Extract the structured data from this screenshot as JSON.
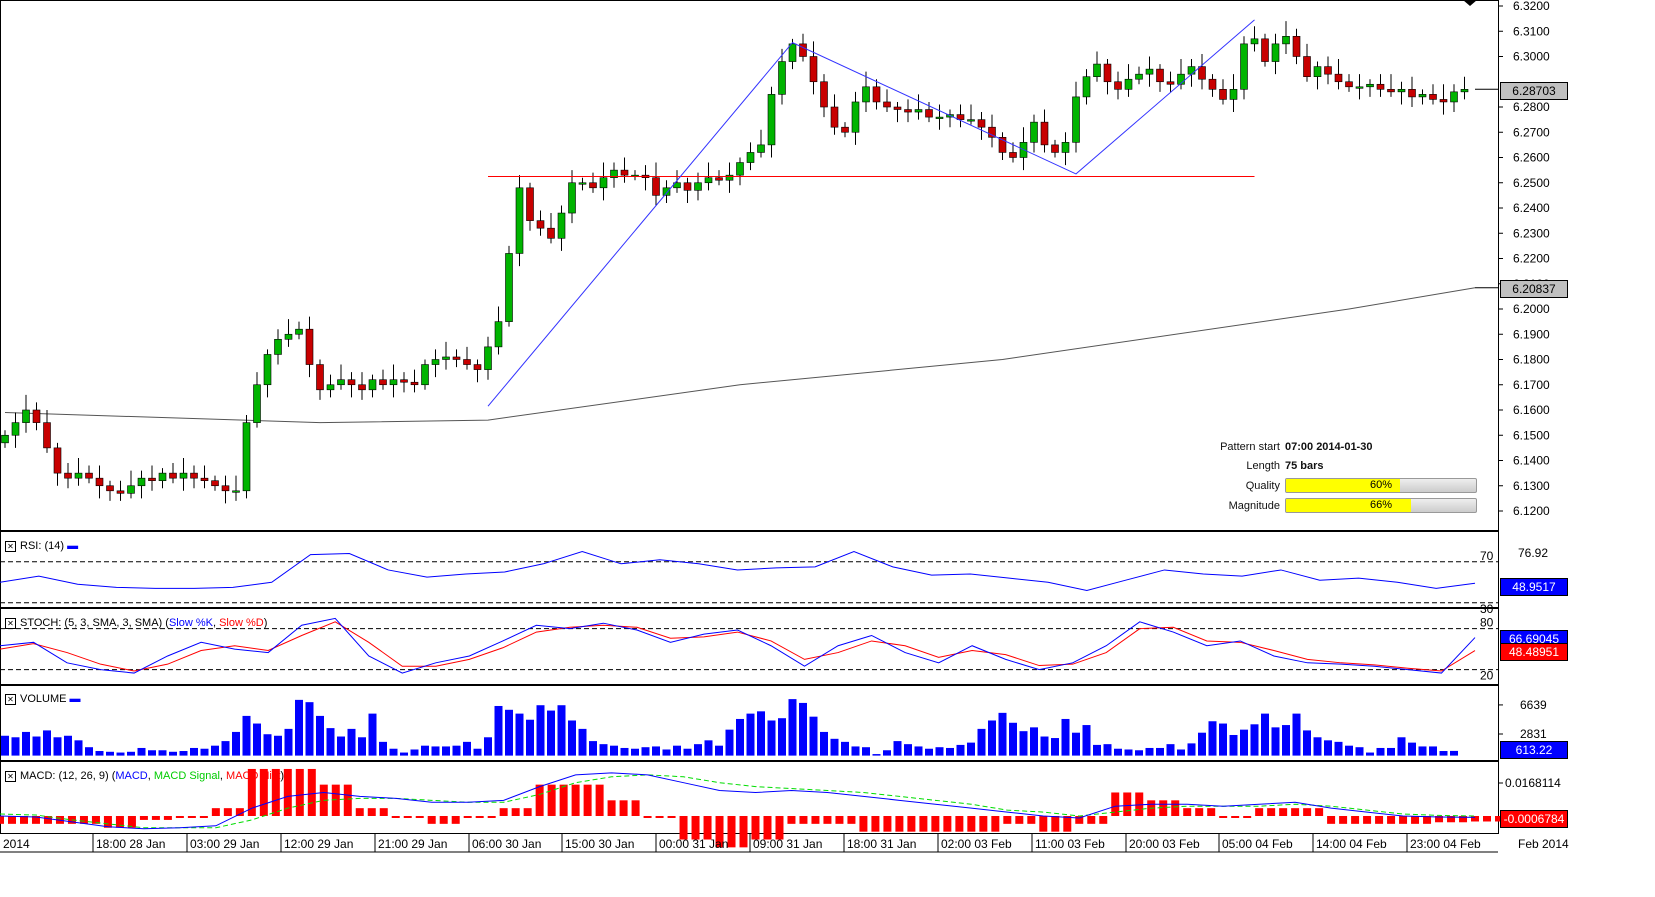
{
  "chart_data": [
    {
      "type": "candlestick",
      "title": "Price",
      "y_ticks": [
        "6.3200",
        "6.3100",
        "6.3000",
        "6.2800",
        "6.2700",
        "6.2600",
        "6.2500",
        "6.2400",
        "6.2300",
        "6.2200",
        "6.2100",
        "6.2000",
        "6.1900",
        "6.1800",
        "6.1700",
        "6.1600",
        "6.1500",
        "6.1400",
        "6.1300",
        "6.1200"
      ],
      "ylim": [
        6.1195,
        6.3198
      ],
      "closes": [
        6.15,
        6.155,
        6.16,
        6.155,
        6.145,
        6.135,
        6.133,
        6.135,
        6.133,
        6.13,
        6.128,
        6.127,
        6.13,
        6.133,
        6.132,
        6.135,
        6.133,
        6.135,
        6.133,
        6.132,
        6.13,
        6.128,
        6.128,
        6.155,
        6.17,
        6.182,
        6.188,
        6.19,
        6.192,
        6.178,
        6.168,
        6.17,
        6.172,
        6.17,
        6.168,
        6.172,
        6.17,
        6.172,
        6.171,
        6.17,
        6.178,
        6.18,
        6.181,
        6.18,
        6.178,
        6.176,
        6.185,
        6.195,
        6.222,
        6.248,
        6.235,
        6.232,
        6.228,
        6.238,
        6.25,
        6.25,
        6.248,
        6.252,
        6.255,
        6.253,
        6.253,
        6.252,
        6.245,
        6.248,
        6.25,
        6.247,
        6.25,
        6.252,
        6.251,
        6.253,
        6.258,
        6.262,
        6.265,
        6.285,
        6.298,
        6.305,
        6.3,
        6.29,
        6.28,
        6.272,
        6.27,
        6.282,
        6.288,
        6.282,
        6.28,
        6.279,
        6.278,
        6.279,
        6.276,
        6.276,
        6.277,
        6.275,
        6.275,
        6.272,
        6.268,
        6.262,
        6.26,
        6.266,
        6.274,
        6.265,
        6.262,
        6.266,
        6.284,
        6.292,
        6.297,
        6.29,
        6.287,
        6.291,
        6.293,
        6.295,
        6.29,
        6.289,
        6.293,
        6.296,
        6.291,
        6.287,
        6.283,
        6.287,
        6.305,
        6.307,
        6.298,
        6.305,
        6.308,
        6.3,
        6.292,
        6.296,
        6.293,
        6.29,
        6.288,
        6.288,
        6.289,
        6.287,
        6.286,
        6.287,
        6.284,
        6.285,
        6.283,
        6.282,
        6.286,
        6.287
      ],
      "sma": [
        [
          0,
          6.159
        ],
        [
          30,
          6.155
        ],
        [
          46,
          6.156
        ],
        [
          70,
          6.17
        ],
        [
          95,
          6.18
        ],
        [
          128,
          6.2
        ],
        [
          140,
          6.2084
        ]
      ],
      "current_price": "6.28703",
      "sma_value": "6.20837",
      "pattern_zigzag": [
        [
          46,
          6.1615
        ],
        [
          75,
          6.3055
        ],
        [
          102,
          6.2535
        ],
        [
          119,
          6.3145
        ]
      ],
      "pattern_level": {
        "from": 46,
        "to": 119,
        "price": 6.2525
      },
      "colors": {
        "up": "#00b400",
        "down": "#c80000",
        "pattern": "#3333ff",
        "level": "#ff0000",
        "sma": "#555555"
      }
    },
    {
      "type": "line",
      "title": "RSI: (14)",
      "levels": [
        "70",
        "30"
      ],
      "level_values": [
        70,
        30
      ],
      "scale_label": "76.92",
      "current": "48.9517",
      "values": [
        50,
        56,
        48,
        45,
        44,
        44,
        45,
        50,
        77,
        78,
        62,
        55,
        58,
        60,
        68,
        80,
        68,
        72,
        68,
        62,
        64,
        65,
        80,
        65,
        57,
        58,
        54,
        50,
        42,
        52,
        62,
        58,
        56,
        62,
        52,
        54,
        50,
        44,
        49
      ]
    },
    {
      "type": "line",
      "title": "STOCH: (5, 3, SMA, 3, SMA)",
      "legend": [
        "Slow %K",
        "Slow %D"
      ],
      "levels": [
        "80",
        "20"
      ],
      "level_values": [
        80,
        20
      ],
      "current_k": "66.69045",
      "current_d": "48.48951",
      "k": [
        55,
        60,
        30,
        20,
        15,
        40,
        60,
        50,
        45,
        85,
        95,
        40,
        15,
        30,
        40,
        62,
        85,
        80,
        88,
        78,
        60,
        72,
        78,
        55,
        25,
        55,
        70,
        45,
        30,
        55,
        35,
        20,
        30,
        55,
        90,
        75,
        55,
        62,
        40,
        30,
        28,
        25,
        20,
        15,
        67
      ],
      "d": [
        50,
        58,
        45,
        28,
        18,
        28,
        48,
        55,
        48,
        70,
        90,
        60,
        25,
        25,
        35,
        52,
        75,
        82,
        85,
        82,
        66,
        68,
        75,
        62,
        35,
        45,
        62,
        55,
        38,
        48,
        42,
        26,
        28,
        45,
        80,
        82,
        62,
        60,
        48,
        35,
        30,
        27,
        22,
        18,
        48
      ]
    },
    {
      "type": "bar",
      "title": "VOLUME",
      "scale_labels": [
        "6639",
        "2831"
      ],
      "current": "613.22",
      "values": [
        2600,
        2400,
        3100,
        2500,
        3300,
        2400,
        2600,
        2000,
        1100,
        600,
        500,
        400,
        500,
        1000,
        700,
        700,
        500,
        600,
        1000,
        900,
        1300,
        1900,
        3100,
        5200,
        4200,
        2800,
        2600,
        3500,
        7300,
        7000,
        5200,
        3600,
        2500,
        3500,
        2400,
        5500,
        1800,
        900,
        400,
        800,
        1300,
        1200,
        1200,
        1300,
        1800,
        900,
        2400,
        6500,
        6000,
        5500,
        4700,
        6600,
        5900,
        6600,
        4600,
        3500,
        1900,
        1500,
        1300,
        1000,
        900,
        1100,
        1200,
        800,
        1300,
        900,
        1500,
        2000,
        1300,
        3400,
        4800,
        5500,
        5800,
        4600,
        4900,
        7400,
        6900,
        5100,
        3100,
        2200,
        1800,
        1200,
        1100,
        200,
        700,
        1900,
        1500,
        1200,
        900,
        1100,
        1000,
        1400,
        1700,
        3500,
        4600,
        5600,
        4300,
        3200,
        3700,
        2500,
        2300,
        4800,
        3000,
        4000,
        1400,
        1500,
        900,
        800,
        700,
        1000,
        1000,
        1500,
        800,
        1600,
        3000,
        4500,
        4200,
        2700,
        3400,
        4100,
        5500,
        3700,
        4000,
        5500,
        3300,
        2400,
        2000,
        1800,
        1300,
        1100,
        400,
        1000,
        1000,
        2400,
        1700,
        1200,
        1200,
        600,
        613
      ]
    },
    {
      "type": "line",
      "title": "MACD: (12, 26, 9)",
      "legend": [
        "MACD",
        "MACD Signal",
        "MACD Hist"
      ],
      "scale_labels": [
        "0.0168114"
      ],
      "current": "-0.0006784",
      "macd": [
        0.0,
        -0.0005,
        -0.003,
        -0.0055,
        -0.0065,
        -0.006,
        -0.005,
        0.004,
        0.01,
        0.012,
        0.01,
        0.009,
        0.007,
        0.007,
        0.008,
        0.015,
        0.021,
        0.022,
        0.021,
        0.017,
        0.013,
        0.012,
        0.013,
        0.012,
        0.01,
        0.008,
        0.006,
        0.004,
        0.002,
        0.0,
        -0.001,
        0.005,
        0.006,
        0.006,
        0.005,
        0.006,
        0.007,
        0.004,
        0.002,
        0.0,
        -0.0005,
        -0.0007
      ],
      "signal": [
        0.001,
        0.0005,
        -0.002,
        -0.004,
        -0.006,
        -0.006,
        -0.006,
        -0.002,
        0.004,
        0.008,
        0.009,
        0.009,
        0.008,
        0.007,
        0.007,
        0.011,
        0.017,
        0.02,
        0.021,
        0.02,
        0.017,
        0.015,
        0.014,
        0.013,
        0.012,
        0.01,
        0.008,
        0.006,
        0.003,
        0.002,
        0.0,
        0.002,
        0.004,
        0.005,
        0.005,
        0.005,
        0.006,
        0.005,
        0.003,
        0.001,
        0.0003,
        0.0
      ]
    }
  ],
  "x_axis": {
    "labels": [
      "2014",
      "18:00 28 Jan",
      "03:00 29 Jan",
      "12:00 29 Jan",
      "21:00 29 Jan",
      "06:00 30 Jan",
      "15:00 30 Jan",
      "00:00 31 Jan",
      "09:00 31 Jan",
      "18:00 31 Jan",
      "02:00 03 Feb",
      "11:00 03 Feb",
      "20:00 03 Feb",
      "05:00 04 Feb",
      "14:00 04 Feb",
      "23:00 04 Feb"
    ],
    "right_label": "Feb 2014"
  },
  "pattern_info": {
    "start_label": "Pattern start",
    "start_value": "07:00 2014-01-30",
    "length_label": "Length",
    "length_value": "75 bars",
    "quality_label": "Quality",
    "quality_pct": 60,
    "quality_text": "60%",
    "magnitude_label": "Magnitude",
    "magnitude_pct": 66,
    "magnitude_text": "66%"
  },
  "panels": {
    "rsi_label": "RSI: (14)",
    "stoch_label": "STOCH: (5, 3, SMA, 3, SMA) (",
    "stoch_k": "Slow %K",
    "stoch_d": "Slow %D",
    "volume_label": "VOLUME",
    "macd_label": "MACD: (12, 26, 9) (",
    "macd_l": "MACD",
    "macd_s": "MACD Signal",
    "macd_h": "MACD Hist",
    "close_icon": "x-box-icon"
  }
}
